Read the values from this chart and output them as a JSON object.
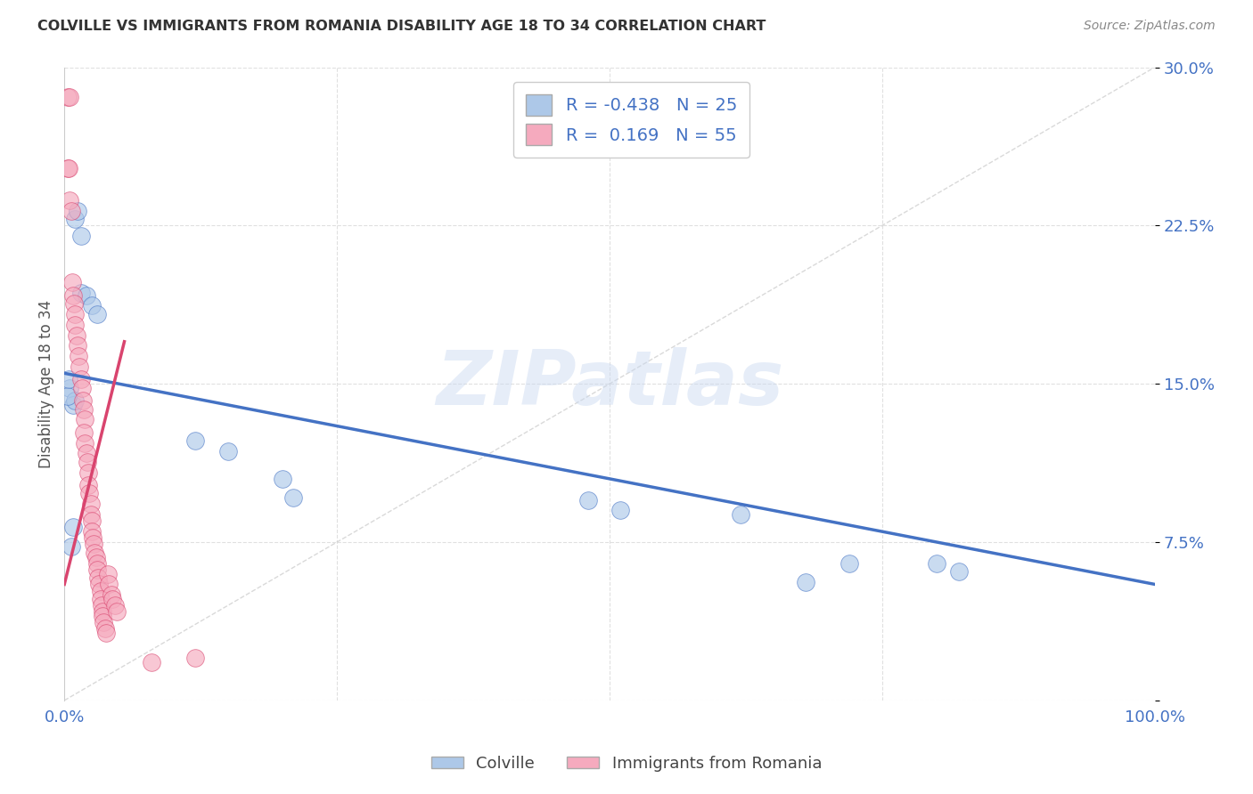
{
  "title": "COLVILLE VS IMMIGRANTS FROM ROMANIA DISABILITY AGE 18 TO 34 CORRELATION CHART",
  "source": "Source: ZipAtlas.com",
  "ylabel": "Disability Age 18 to 34",
  "xlim": [
    0,
    1.0
  ],
  "ylim": [
    0,
    0.3
  ],
  "colville_r": "-0.438",
  "colville_n": "25",
  "romania_r": "0.169",
  "romania_n": "55",
  "colville_color": "#adc8e8",
  "romania_color": "#f5aabe",
  "colville_line_color": "#4472c4",
  "romania_line_color": "#d9446e",
  "ref_line_color": "#cccccc",
  "background_color": "#ffffff",
  "colville_points_x": [
    0.005,
    0.008,
    0.01,
    0.012,
    0.015,
    0.01,
    0.015,
    0.02,
    0.025,
    0.03,
    0.12,
    0.15,
    0.2,
    0.21,
    0.48,
    0.51,
    0.62,
    0.68,
    0.72,
    0.8,
    0.82,
    0.003,
    0.004,
    0.006,
    0.008
  ],
  "colville_points_y": [
    0.148,
    0.14,
    0.228,
    0.232,
    0.22,
    0.142,
    0.193,
    0.192,
    0.187,
    0.183,
    0.123,
    0.118,
    0.105,
    0.096,
    0.095,
    0.09,
    0.088,
    0.056,
    0.065,
    0.065,
    0.061,
    0.144,
    0.152,
    0.073,
    0.082
  ],
  "romania_points_x": [
    0.003,
    0.005,
    0.003,
    0.004,
    0.005,
    0.006,
    0.007,
    0.008,
    0.009,
    0.01,
    0.01,
    0.011,
    0.012,
    0.013,
    0.014,
    0.015,
    0.016,
    0.017,
    0.018,
    0.019,
    0.018,
    0.019,
    0.02,
    0.021,
    0.022,
    0.022,
    0.023,
    0.024,
    0.024,
    0.025,
    0.025,
    0.026,
    0.027,
    0.028,
    0.029,
    0.03,
    0.03,
    0.031,
    0.032,
    0.033,
    0.033,
    0.034,
    0.035,
    0.035,
    0.036,
    0.037,
    0.038,
    0.04,
    0.041,
    0.043,
    0.044,
    0.046,
    0.048,
    0.08,
    0.12
  ],
  "romania_points_y": [
    0.286,
    0.286,
    0.252,
    0.252,
    0.237,
    0.232,
    0.198,
    0.192,
    0.188,
    0.183,
    0.178,
    0.173,
    0.168,
    0.163,
    0.158,
    0.152,
    0.148,
    0.142,
    0.138,
    0.133,
    0.127,
    0.122,
    0.117,
    0.113,
    0.108,
    0.102,
    0.098,
    0.093,
    0.088,
    0.085,
    0.08,
    0.077,
    0.074,
    0.07,
    0.068,
    0.065,
    0.062,
    0.058,
    0.055,
    0.052,
    0.048,
    0.045,
    0.042,
    0.04,
    0.037,
    0.034,
    0.032,
    0.06,
    0.055,
    0.05,
    0.048,
    0.045,
    0.042,
    0.018,
    0.02
  ],
  "colville_trend_x": [
    0.0,
    1.0
  ],
  "colville_trend_y": [
    0.155,
    0.055
  ],
  "romania_trend_x": [
    0.0,
    0.055
  ],
  "romania_trend_y": [
    0.055,
    0.17
  ]
}
